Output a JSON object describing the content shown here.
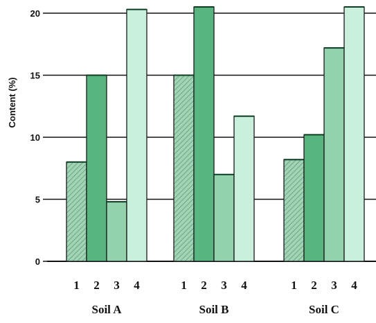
{
  "chart_data": {
    "type": "bar",
    "title": "",
    "xlabel": "",
    "ylabel": "Content (%)",
    "ylim": [
      0,
      20
    ],
    "yticks": [
      0,
      5,
      10,
      15,
      20
    ],
    "grid": true,
    "groups": [
      {
        "name": "Soil A",
        "categories": [
          "1",
          "2",
          "3",
          "4"
        ],
        "values": [
          8,
          15,
          4.8,
          20.3
        ]
      },
      {
        "name": "Soil B",
        "categories": [
          "1",
          "2",
          "3",
          "4"
        ],
        "values": [
          15,
          20.5,
          7,
          11.7
        ]
      },
      {
        "name": "Soil C",
        "categories": [
          "1",
          "2",
          "3",
          "4"
        ],
        "values": [
          8.2,
          10.2,
          17.2,
          20.5
        ]
      }
    ],
    "colors": [
      "#9fd4b4",
      "#58b57f",
      "#92d3ad",
      "#c8f0dc"
    ],
    "hatched_categories": [
      "1"
    ]
  }
}
